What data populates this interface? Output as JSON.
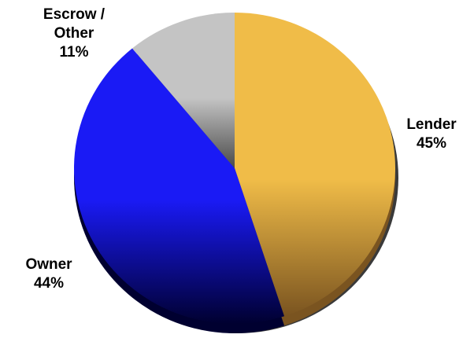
{
  "chart_data": {
    "type": "pie",
    "title": "",
    "series": [
      {
        "name": "Lender",
        "label_lines": [
          "Lender",
          "45%"
        ],
        "value": 45,
        "color": "#F0BC48",
        "color_dark": "#7A5420"
      },
      {
        "name": "Owner",
        "label_lines": [
          "Owner",
          "44%"
        ],
        "value": 44,
        "color": "#1A1AF5",
        "color_dark": "#000030"
      },
      {
        "name": "Escrow / Other",
        "label_lines": [
          "Escrow /",
          "Other",
          "11%"
        ],
        "value": 11,
        "color": "#C4C4C4",
        "color_dark": "#4A4A4A"
      }
    ],
    "start_angle_deg": 0,
    "direction": "clockwise",
    "legend": "none",
    "labels": "outside"
  }
}
